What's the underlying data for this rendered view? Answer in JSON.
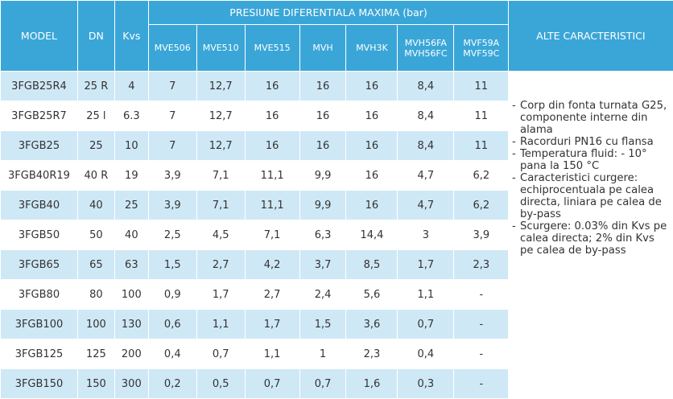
{
  "headers": {
    "model": "MODEL",
    "dn": "DN",
    "kvs": "Kvs",
    "group": "PRESIUNE DIFERENTIALA MAXIMA (bar)",
    "other": "ALTE CARACTERISTICI",
    "sub": [
      "MVE506",
      "MVE510",
      "MVE515",
      "MVH",
      "MVH3K",
      "MVH56FA\nMVH56FC",
      "MVF59A\nMVF59C"
    ]
  },
  "rows": [
    {
      "model": "3FGB25R4",
      "dn": "25 R",
      "kvs": "4",
      "v": [
        "7",
        "12,7",
        "16",
        "16",
        "16",
        "8,4",
        "11"
      ]
    },
    {
      "model": "3FGB25R7",
      "dn": "25 l",
      "kvs": "6.3",
      "v": [
        "7",
        "12,7",
        "16",
        "16",
        "16",
        "8,4",
        "11"
      ]
    },
    {
      "model": "3FGB25",
      "dn": "25",
      "kvs": "10",
      "v": [
        "7",
        "12,7",
        "16",
        "16",
        "16",
        "8,4",
        "11"
      ]
    },
    {
      "model": "3FGB40R19",
      "dn": "40 R",
      "kvs": "19",
      "v": [
        "3,9",
        "7,1",
        "11,1",
        "9,9",
        "16",
        "4,7",
        "6,2"
      ]
    },
    {
      "model": "3FGB40",
      "dn": "40",
      "kvs": "25",
      "v": [
        "3,9",
        "7,1",
        "11,1",
        "9,9",
        "16",
        "4,7",
        "6,2"
      ]
    },
    {
      "model": "3FGB50",
      "dn": "50",
      "kvs": "40",
      "v": [
        "2,5",
        "4,5",
        "7,1",
        "6,3",
        "14,4",
        "3",
        "3,9"
      ]
    },
    {
      "model": "3FGB65",
      "dn": "65",
      "kvs": "63",
      "v": [
        "1,5",
        "2,7",
        "4,2",
        "3,7",
        "8,5",
        "1,7",
        "2,3"
      ]
    },
    {
      "model": "3FGB80",
      "dn": "80",
      "kvs": "100",
      "v": [
        "0,9",
        "1,7",
        "2,7",
        "2,4",
        "5,6",
        "1,1",
        "-"
      ]
    },
    {
      "model": "3FGB100",
      "dn": "100",
      "kvs": "130",
      "v": [
        "0,6",
        "1,1",
        "1,7",
        "1,5",
        "3,6",
        "0,7",
        "-"
      ]
    },
    {
      "model": "3FGB125",
      "dn": "125",
      "kvs": "200",
      "v": [
        "0,4",
        "0,7",
        "1,1",
        "1",
        "2,3",
        "0,4",
        "-"
      ]
    },
    {
      "model": "3FGB150",
      "dn": "150",
      "kvs": "300",
      "v": [
        "0,2",
        "0,5",
        "0,7",
        "0,7",
        "1,6",
        "0,3",
        "-"
      ]
    }
  ],
  "notes": [
    {
      "dash": "-",
      "lines": [
        "Corp din fonta turnata G25,",
        "componente interne din",
        "alama"
      ]
    },
    {
      "dash": "-",
      "lines": [
        "Racorduri PN16 cu flansa"
      ]
    },
    {
      "dash": "-",
      "lines": [
        "Temperatura fluid: - 10°",
        "pana la 150 °C"
      ]
    },
    {
      "dash": "-",
      "lines": [
        "Caracteristici curgere:",
        "echiprocentuala pe calea",
        "directa, liniara pe calea de",
        "by-pass"
      ]
    },
    {
      "dash": "-",
      "lines": [
        "Scurgere: 0.03% din Kvs pe",
        "calea directa; 2% din Kvs",
        "pe calea de by-pass"
      ]
    }
  ],
  "colors": {
    "header_bg": "#3aa6d8",
    "row_alt_bg": "#cfe8f6"
  }
}
